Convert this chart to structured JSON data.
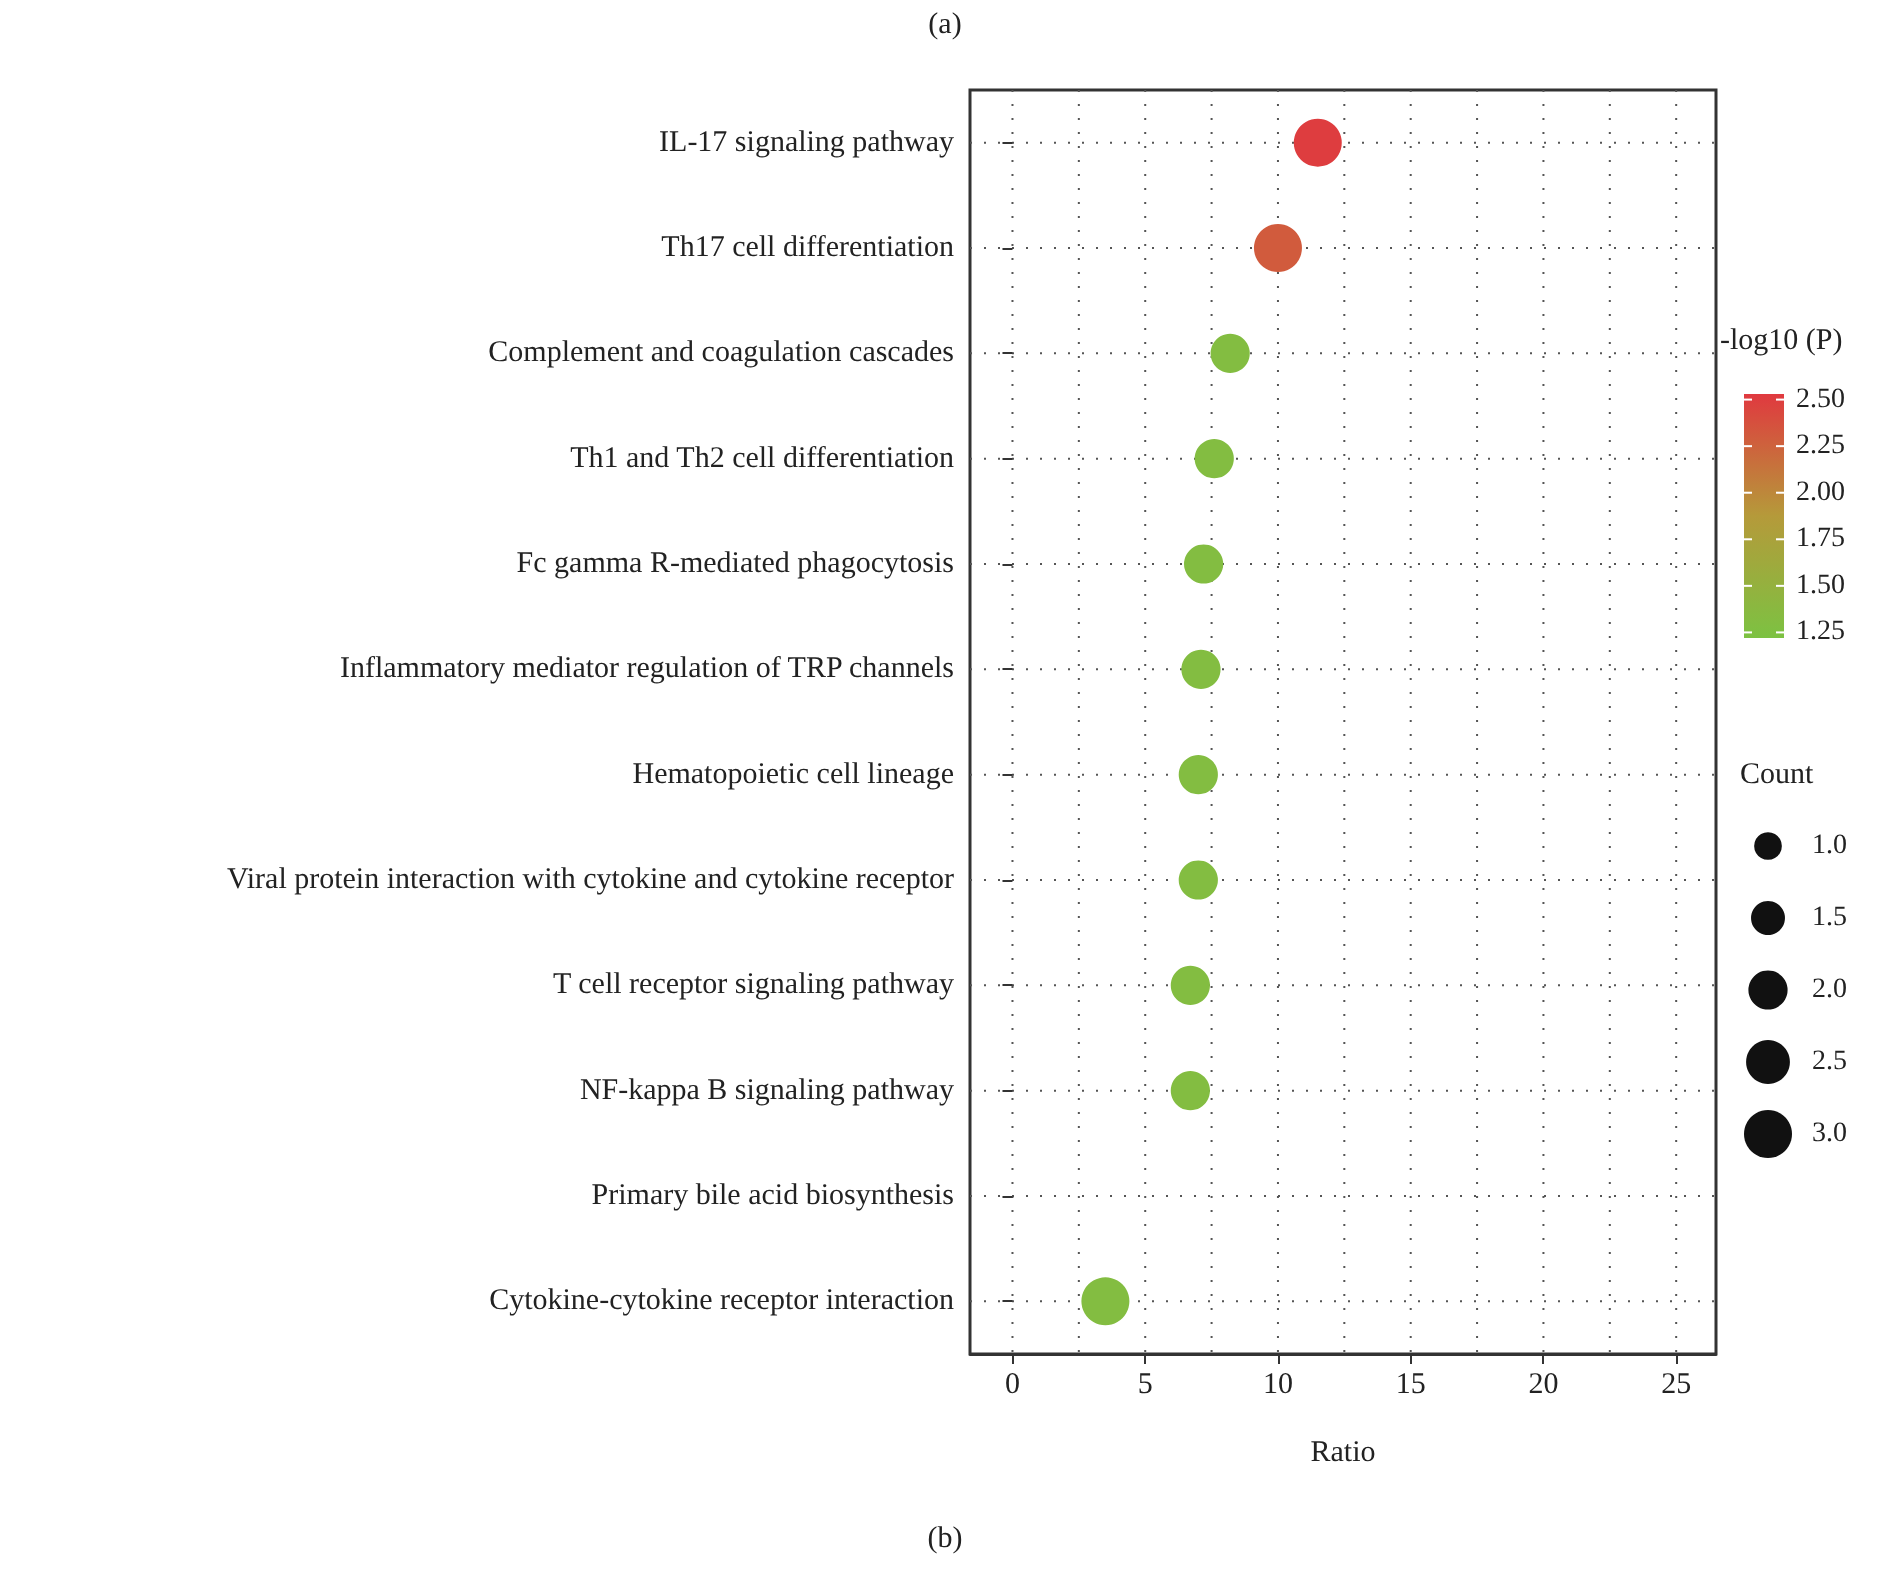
{
  "chart_data": {
    "type": "bubble",
    "title": "(a)",
    "xlabel": "Ratio",
    "clabel": "-log10 (P)",
    "legend_title": "Count",
    "categories": [
      "IL-17 signaling pathway",
      "Th17 cell differentiation",
      "Complement and coagulation cascades",
      "Th1 and Th2 cell differentiation",
      "Fc gamma R-mediated phagocytosis",
      "Inflammatory mediator regulation of TRP channels",
      "Hematopoietic cell lineage",
      "Viral protein interaction with cytokine and cytokine receptor",
      "T cell receptor signaling pathway",
      "NF-kappa B signaling pathway",
      "Primary bile acid biosynthesis",
      "Cytokine-cytokine receptor interaction"
    ],
    "values": [
      11.5,
      10.0,
      8.2,
      7.6,
      7.2,
      7.1,
      7.0,
      7.0,
      6.7,
      6.7,
      null,
      3.5
    ],
    "sizes": [
      3,
      3,
      2,
      2,
      2,
      2,
      2,
      2,
      2,
      2,
      null,
      3
    ],
    "cvalues": [
      2.5,
      2.3,
      1.3,
      1.3,
      1.3,
      1.3,
      1.3,
      1.3,
      1.3,
      1.3,
      null,
      1.3
    ],
    "size_legend": [
      {
        "value": 1,
        "label": "1.0"
      },
      {
        "value": 1.5,
        "label": "1.5"
      },
      {
        "value": 2,
        "label": "2.0"
      },
      {
        "value": 2.5,
        "label": "2.5"
      },
      {
        "value": 3,
        "label": "3.0"
      }
    ],
    "orientation": "horizontal",
    "clim": [
      1.22,
      2.53
    ],
    "cticks": [
      {
        "value": 1.25,
        "label": "1.25"
      },
      {
        "value": 1.5,
        "label": "1.50"
      },
      {
        "value": 1.75,
        "label": "1.75"
      },
      {
        "value": 2.0,
        "label": "2.00"
      },
      {
        "value": 2.25,
        "label": "2.25"
      },
      {
        "value": 2.5,
        "label": "2.50"
      }
    ],
    "xlim": [
      -1.6,
      26.5
    ],
    "xticks": [
      0,
      5,
      10,
      15,
      20,
      25
    ],
    "grid": true,
    "marker": "circle",
    "annotations": [
      "(b)"
    ]
  }
}
